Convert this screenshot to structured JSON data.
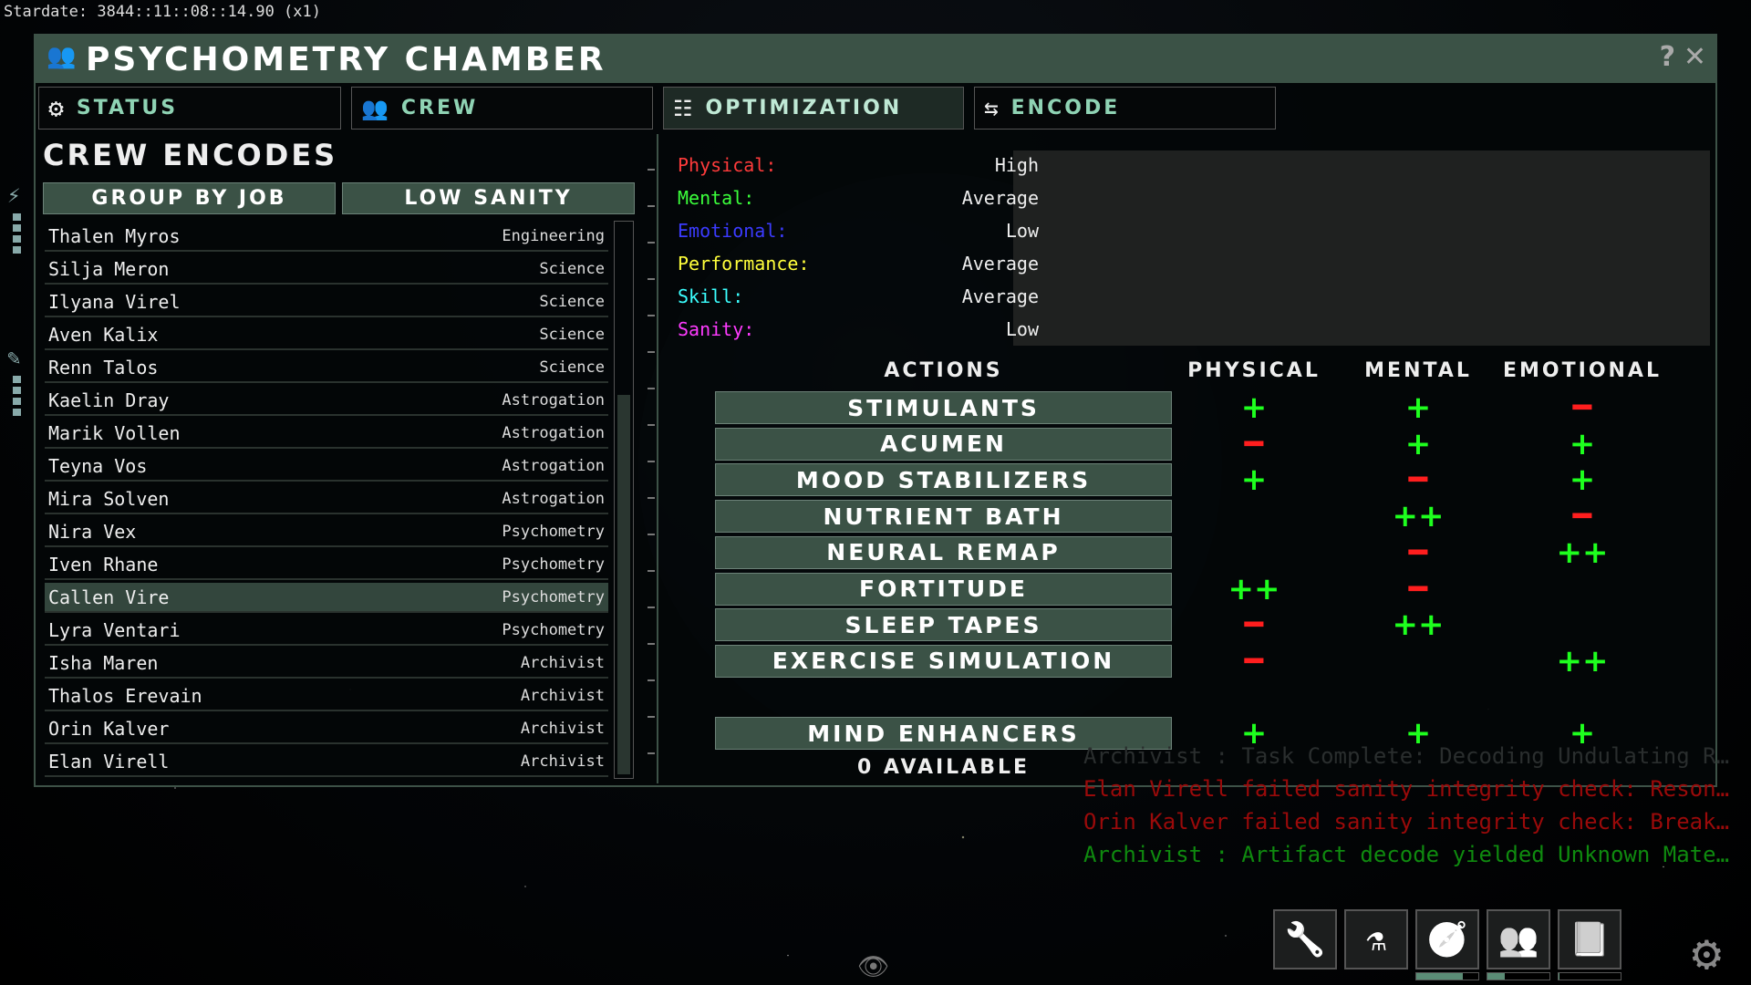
{
  "stardate": "Stardate: 3844::11::08::14.90 (x1)",
  "window": {
    "title": "Psychometry Chamber",
    "help": "?",
    "close": "✕"
  },
  "tabs": [
    {
      "label": "Status",
      "icon": "gear-icon"
    },
    {
      "label": "Crew",
      "icon": "crew-icon"
    },
    {
      "label": "Optimization",
      "icon": "sliders-icon",
      "active": true
    },
    {
      "label": "Encode",
      "icon": "swap-icon"
    }
  ],
  "crew_panel": {
    "heading": "Crew Encodes",
    "group_button": "Group by Job",
    "filter_button": "Low Sanity",
    "crew": [
      {
        "name": "Thalen Myros",
        "job": "Engineering"
      },
      {
        "name": "Silja Meron",
        "job": "Science"
      },
      {
        "name": "Ilyana Virel",
        "job": "Science"
      },
      {
        "name": "Aven Kalix",
        "job": "Science"
      },
      {
        "name": "Renn Talos",
        "job": "Science"
      },
      {
        "name": "Kaelin Dray",
        "job": "Astrogation"
      },
      {
        "name": "Marik Vollen",
        "job": "Astrogation"
      },
      {
        "name": "Teyna Vos",
        "job": "Astrogation"
      },
      {
        "name": "Mira Solven",
        "job": "Astrogation"
      },
      {
        "name": "Nira Vex",
        "job": "Psychometry"
      },
      {
        "name": "Iven Rhane",
        "job": "Psychometry"
      },
      {
        "name": "Callen Vire",
        "job": "Psychometry",
        "selected": true
      },
      {
        "name": "Lyra Ventari",
        "job": "Psychometry"
      },
      {
        "name": "Isha Maren",
        "job": "Archivist"
      },
      {
        "name": "Thalos Erevain",
        "job": "Archivist"
      },
      {
        "name": "Orin Kalver",
        "job": "Archivist"
      },
      {
        "name": "Elan Virell",
        "job": "Archivist"
      }
    ]
  },
  "stats": [
    {
      "label": "Physical:",
      "value": "High",
      "color": "#ff3b3b"
    },
    {
      "label": "Mental:",
      "value": "Average",
      "color": "#3bff3b"
    },
    {
      "label": "Emotional:",
      "value": "Low",
      "color": "#3b3bff"
    },
    {
      "label": "Performance:",
      "value": "Average",
      "color": "#ffff3b"
    },
    {
      "label": "Skill:",
      "value": "Average",
      "color": "#3bffff"
    },
    {
      "label": "Sanity:",
      "value": "Low",
      "color": "#ff3bff"
    }
  ],
  "actions": {
    "header": "Actions",
    "columns": [
      "Physical",
      "Mental",
      "Emotional"
    ],
    "rows": [
      {
        "label": "Stimulants",
        "effects": [
          "+",
          "+",
          "-"
        ]
      },
      {
        "label": "Acumen",
        "effects": [
          "-",
          "+",
          "+"
        ]
      },
      {
        "label": "Mood Stabilizers",
        "effects": [
          "+",
          "-",
          "+"
        ]
      },
      {
        "label": "Nutrient Bath",
        "effects": [
          "",
          "++",
          "-"
        ]
      },
      {
        "label": "Neural Remap",
        "effects": [
          "",
          "-",
          "++"
        ]
      },
      {
        "label": "Fortitude",
        "effects": [
          "++",
          "-",
          ""
        ]
      },
      {
        "label": "Sleep Tapes",
        "effects": [
          "-",
          "++",
          ""
        ]
      },
      {
        "label": "Exercise Simulation",
        "effects": [
          "-",
          "",
          "++"
        ]
      }
    ],
    "special": {
      "label": "Mind Enhancers",
      "effects": [
        "+",
        "+",
        "+"
      ],
      "available": "0 Available"
    }
  },
  "log": [
    {
      "text": "Archivist : Task Complete: Decoding Undulating Resonance",
      "color": "#2a2e2e"
    },
    {
      "text": "Elan Virell failed sanity integrity check: Resonance",
      "color": "#9a0a0a"
    },
    {
      "text": "Orin Kalver failed sanity integrity check: Breakdown",
      "color": "#9a0a0a"
    },
    {
      "text": "Archivist : Artifact decode yielded Unknown Material",
      "color": "#0f8a0f"
    }
  ],
  "dock": [
    {
      "icon": "wrench-icon"
    },
    {
      "icon": "flask-icon"
    },
    {
      "icon": "compass-icon",
      "progress": 0.75
    },
    {
      "icon": "crew-icon",
      "progress": 0.28
    },
    {
      "icon": "book-icon",
      "progress": 0.02
    }
  ]
}
